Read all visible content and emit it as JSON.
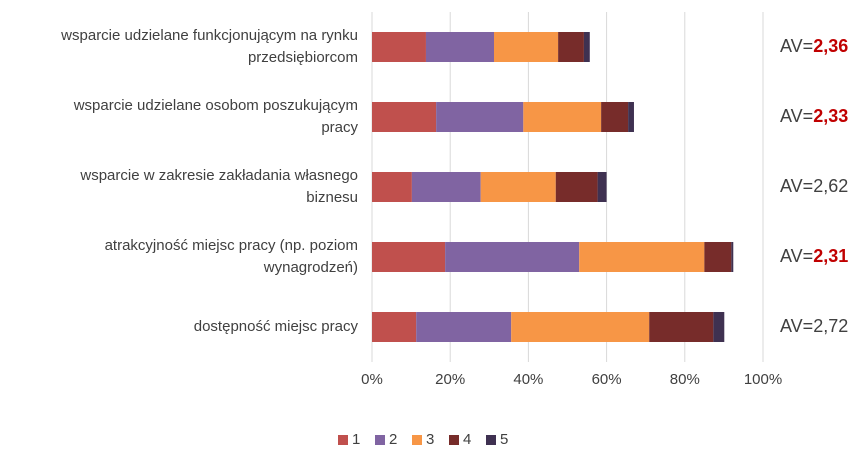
{
  "chart_data": {
    "type": "stacked_barh",
    "categories": [
      "wsparcie udzielane funkcjonującym na rynku\nprzedsiębiorcom",
      "wsparcie udzielane osobom poszukującym\npracy",
      "wsparcie w zakresie zakładania własnego\nbiznesu",
      "atrakcyjność miejsc pracy (np. poziom\nwynagrodzeń)",
      "dostępność miejsc pracy"
    ],
    "series": [
      {
        "name": "1",
        "color": "#c0504d",
        "values": [
          13.8,
          16.4,
          10.2,
          18.7,
          11.3
        ]
      },
      {
        "name": "2",
        "color": "#8064a2",
        "values": [
          17.4,
          22.3,
          17.6,
          34.3,
          24.3
        ]
      },
      {
        "name": "3",
        "color": "#f79646",
        "values": [
          16.4,
          19.9,
          19.2,
          32.0,
          35.3
        ]
      },
      {
        "name": "4",
        "color": "#772c2a",
        "values": [
          6.6,
          6.9,
          10.7,
          6.9,
          16.4
        ]
      },
      {
        "name": "5",
        "color": "#3f3151",
        "values": [
          1.5,
          1.5,
          2.3,
          0.5,
          2.8
        ]
      }
    ],
    "xlim": [
      0,
      100
    ],
    "xticks": [
      {
        "value": 0,
        "label": "0%"
      },
      {
        "value": 20,
        "label": "20%"
      },
      {
        "value": 40,
        "label": "40%"
      },
      {
        "value": 60,
        "label": "60%"
      },
      {
        "value": 80,
        "label": "80%"
      },
      {
        "value": 100,
        "label": "100%"
      }
    ],
    "grid": true,
    "legend": "bottom",
    "annotation_prefix": "AV=",
    "annotations": [
      {
        "text": "2,36",
        "highlight": true
      },
      {
        "text": "2,33",
        "highlight": true
      },
      {
        "text": "2,62",
        "highlight": false
      },
      {
        "text": "2,31",
        "highlight": true
      },
      {
        "text": "2,72",
        "highlight": false
      }
    ],
    "highlight_color": "#c00000"
  }
}
